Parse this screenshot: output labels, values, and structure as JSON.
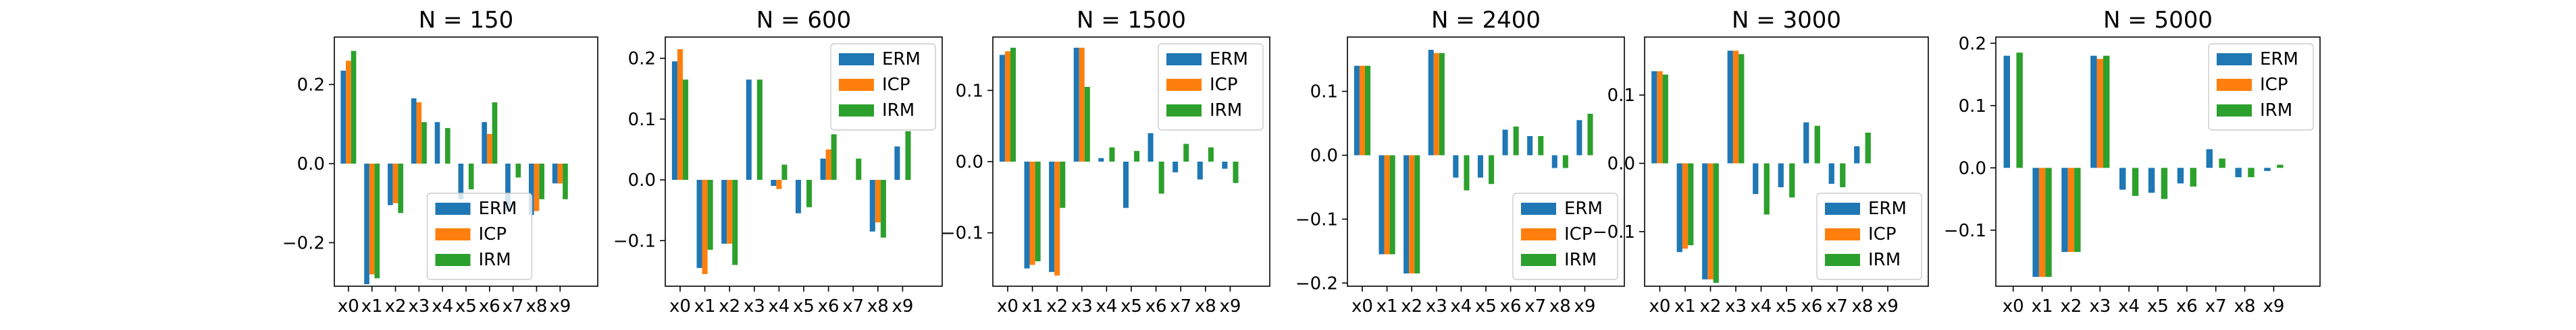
{
  "figure": {
    "colors": {
      "ERM": "#1f77b4",
      "ICP": "#ff7f0e",
      "IRM": "#2ca02c"
    }
  },
  "chart_data": [
    {
      "type": "bar",
      "title": "N = 150",
      "categories": [
        "x0",
        "x1",
        "x2",
        "x3",
        "x4",
        "x5",
        "x6",
        "x7",
        "x8",
        "x9"
      ],
      "ylim": [
        -0.31,
        0.32
      ],
      "yticks": [
        -0.2,
        0.0,
        0.2
      ],
      "ytick_labels": [
        "−0.2",
        "0.0",
        "0.2"
      ],
      "legend": "lower-center",
      "grid": false,
      "series": [
        {
          "name": "ERM",
          "values": [
            0.235,
            -0.305,
            -0.105,
            0.165,
            0.105,
            -0.09,
            0.105,
            -0.12,
            -0.13,
            -0.05
          ]
        },
        {
          "name": "ICP",
          "values": [
            0.26,
            -0.28,
            -0.1,
            0.155,
            0.0,
            0.0,
            0.075,
            0.0,
            -0.12,
            -0.05
          ]
        },
        {
          "name": "IRM",
          "values": [
            0.285,
            -0.29,
            -0.125,
            0.105,
            0.09,
            -0.065,
            0.155,
            -0.035,
            -0.09,
            -0.09
          ]
        }
      ]
    },
    {
      "type": "bar",
      "title": "N = 600",
      "categories": [
        "x0",
        "x1",
        "x2",
        "x3",
        "x4",
        "x5",
        "x6",
        "x7",
        "x8",
        "x9"
      ],
      "ylim": [
        -0.175,
        0.235
      ],
      "yticks": [
        -0.1,
        0.0,
        0.1,
        0.2
      ],
      "ytick_labels": [
        "−0.1",
        "0.0",
        "0.1",
        "0.2"
      ],
      "legend": "upper-right",
      "grid": false,
      "series": [
        {
          "name": "ERM",
          "values": [
            0.195,
            -0.145,
            -0.105,
            0.165,
            -0.01,
            -0.055,
            0.035,
            0.0,
            -0.085,
            0.055
          ]
        },
        {
          "name": "ICP",
          "values": [
            0.215,
            -0.155,
            -0.105,
            0.0,
            -0.015,
            0.0,
            0.05,
            0.0,
            -0.07,
            0.0
          ]
        },
        {
          "name": "IRM",
          "values": [
            0.165,
            -0.115,
            -0.14,
            0.165,
            0.025,
            -0.045,
            0.075,
            0.035,
            -0.095,
            0.08
          ]
        }
      ]
    },
    {
      "type": "bar",
      "title": "N = 1500",
      "categories": [
        "x0",
        "x1",
        "x2",
        "x3",
        "x4",
        "x5",
        "x6",
        "x7",
        "x8",
        "x9"
      ],
      "ylim": [
        -0.175,
        0.175
      ],
      "yticks": [
        -0.1,
        0.0,
        0.1
      ],
      "ytick_labels": [
        "−0.1",
        "0.0",
        "0.1"
      ],
      "legend": "upper-right",
      "grid": false,
      "series": [
        {
          "name": "ERM",
          "values": [
            0.15,
            -0.15,
            -0.155,
            0.16,
            0.005,
            -0.065,
            0.04,
            -0.015,
            -0.025,
            -0.01
          ]
        },
        {
          "name": "ICP",
          "values": [
            0.155,
            -0.145,
            -0.16,
            0.16,
            0.0,
            0.0,
            0.0,
            0.0,
            0.0,
            0.0
          ]
        },
        {
          "name": "IRM",
          "values": [
            0.16,
            -0.14,
            -0.065,
            0.105,
            0.02,
            0.015,
            -0.045,
            0.025,
            0.02,
            -0.03
          ]
        }
      ]
    },
    {
      "type": "bar",
      "title": "N = 2400",
      "categories": [
        "x0",
        "x1",
        "x2",
        "x3",
        "x4",
        "x5",
        "x6",
        "x7",
        "x8",
        "x9"
      ],
      "ylim": [
        -0.205,
        0.185
      ],
      "yticks": [
        -0.2,
        -0.1,
        0.0,
        0.1
      ],
      "ytick_labels": [
        "−0.2",
        "−0.1",
        "0.0",
        "0.1"
      ],
      "legend": "lower-right",
      "grid": false,
      "series": [
        {
          "name": "ERM",
          "values": [
            0.14,
            -0.155,
            -0.185,
            0.165,
            -0.035,
            -0.035,
            0.04,
            0.03,
            -0.02,
            0.055
          ]
        },
        {
          "name": "ICP",
          "values": [
            0.14,
            -0.155,
            -0.185,
            0.16,
            0.0,
            0.0,
            0.0,
            0.0,
            0.0,
            0.0
          ]
        },
        {
          "name": "IRM",
          "values": [
            0.14,
            -0.155,
            -0.185,
            0.16,
            -0.055,
            -0.045,
            0.045,
            0.03,
            -0.02,
            0.065
          ]
        }
      ]
    },
    {
      "type": "bar",
      "title": "N = 3000",
      "categories": [
        "x0",
        "x1",
        "x2",
        "x3",
        "x4",
        "x5",
        "x6",
        "x7",
        "x8",
        "x9"
      ],
      "ylim": [
        -0.18,
        0.185
      ],
      "yticks": [
        -0.1,
        0.0,
        0.1
      ],
      "ytick_labels": [
        "−0.1",
        "0.0",
        "0.1"
      ],
      "legend": "lower-right",
      "grid": false,
      "series": [
        {
          "name": "ERM",
          "values": [
            0.135,
            -0.13,
            -0.17,
            0.165,
            -0.045,
            -0.035,
            0.06,
            -0.03,
            0.025,
            0.0
          ]
        },
        {
          "name": "ICP",
          "values": [
            0.135,
            -0.125,
            -0.17,
            0.165,
            0.0,
            0.0,
            0.0,
            0.0,
            0.0,
            0.0
          ]
        },
        {
          "name": "IRM",
          "values": [
            0.13,
            -0.12,
            -0.175,
            0.16,
            -0.075,
            -0.05,
            0.055,
            -0.035,
            0.045,
            0.0
          ]
        }
      ]
    },
    {
      "type": "bar",
      "title": "N = 5000",
      "categories": [
        "x0",
        "x1",
        "x2",
        "x3",
        "x4",
        "x5",
        "x6",
        "x7",
        "x8",
        "x9"
      ],
      "ylim": [
        -0.19,
        0.21
      ],
      "yticks": [
        -0.1,
        0.0,
        0.1,
        0.2
      ],
      "ytick_labels": [
        "−0.1",
        "0.0",
        "0.1",
        "0.2"
      ],
      "legend": "upper-right",
      "grid": false,
      "series": [
        {
          "name": "ERM",
          "values": [
            0.18,
            -0.175,
            -0.135,
            0.18,
            -0.035,
            -0.04,
            -0.025,
            0.03,
            -0.015,
            -0.005
          ]
        },
        {
          "name": "ICP",
          "values": [
            0.0,
            -0.175,
            -0.135,
            0.175,
            0.0,
            0.0,
            0.0,
            0.0,
            0.0,
            0.0
          ]
        },
        {
          "name": "IRM",
          "values": [
            0.185,
            -0.175,
            -0.135,
            0.18,
            -0.045,
            -0.05,
            -0.03,
            0.015,
            -0.015,
            0.005
          ]
        }
      ]
    }
  ]
}
